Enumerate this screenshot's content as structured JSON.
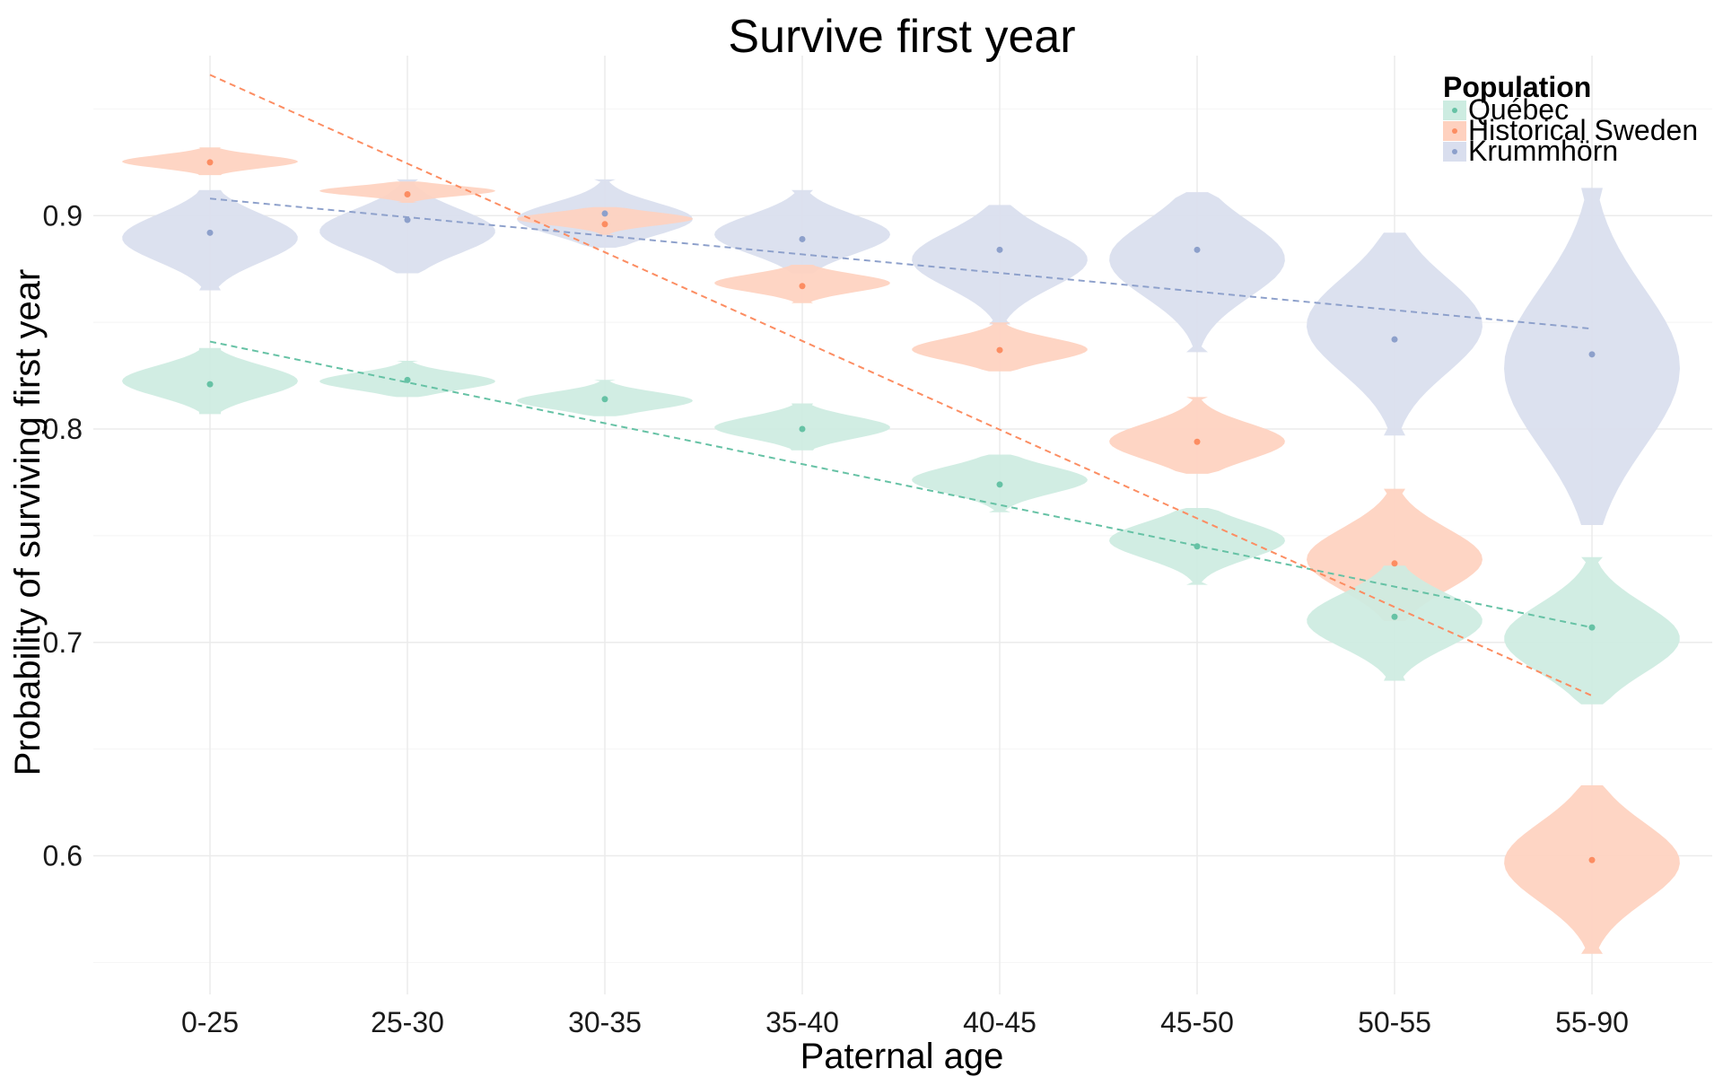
{
  "chart_data": {
    "type": "violin",
    "title": "Survive first year",
    "xlabel": "Paternal age",
    "ylabel": "Probability of surviving first year",
    "categories": [
      "0-25",
      "25-30",
      "30-35",
      "35-40",
      "40-45",
      "45-50",
      "50-55",
      "55-90"
    ],
    "ylim": [
      0.535,
      0.975
    ],
    "yticks": [
      0.6,
      0.7,
      0.8,
      0.9
    ],
    "ytick_labels": [
      "0.6",
      "0.7",
      "0.8",
      "0.9"
    ],
    "grid": true,
    "legend": {
      "title": "Population",
      "position": "top-right"
    },
    "series": [
      {
        "name": "Québec",
        "point_color": "#66c2a5",
        "fill_color": "#cdece1",
        "points": [
          0.821,
          0.823,
          0.814,
          0.8,
          0.774,
          0.745,
          0.712,
          0.707
        ],
        "violin_range": [
          [
            0.807,
            0.838
          ],
          [
            0.815,
            0.832
          ],
          [
            0.806,
            0.823
          ],
          [
            0.79,
            0.812
          ],
          [
            0.761,
            0.788
          ],
          [
            0.727,
            0.763
          ],
          [
            0.682,
            0.736
          ],
          [
            0.671,
            0.74
          ]
        ],
        "trend": [
          0.841,
          0.707
        ]
      },
      {
        "name": "Historical Sweden",
        "point_color": "#fc8d62",
        "fill_color": "#fed1bf",
        "points": [
          0.925,
          0.91,
          0.896,
          0.867,
          0.837,
          0.794,
          0.737,
          0.598
        ],
        "violin_range": [
          [
            0.919,
            0.932
          ],
          [
            0.906,
            0.916
          ],
          [
            0.891,
            0.904
          ],
          [
            0.859,
            0.877
          ],
          [
            0.827,
            0.85
          ],
          [
            0.779,
            0.815
          ],
          [
            0.71,
            0.772
          ],
          [
            0.554,
            0.633
          ]
        ],
        "trend": [
          0.966,
          0.675
        ]
      },
      {
        "name": "Krummhörn",
        "point_color": "#8da0cb",
        "fill_color": "#d9deee",
        "points": [
          0.892,
          0.898,
          0.901,
          0.889,
          0.884,
          0.884,
          0.842,
          0.835
        ],
        "violin_range": [
          [
            0.865,
            0.912
          ],
          [
            0.873,
            0.917
          ],
          [
            0.885,
            0.917
          ],
          [
            0.873,
            0.912
          ],
          [
            0.849,
            0.905
          ],
          [
            0.836,
            0.911
          ],
          [
            0.797,
            0.892
          ],
          [
            0.755,
            0.913
          ]
        ],
        "trend": [
          0.908,
          0.847
        ]
      }
    ]
  }
}
